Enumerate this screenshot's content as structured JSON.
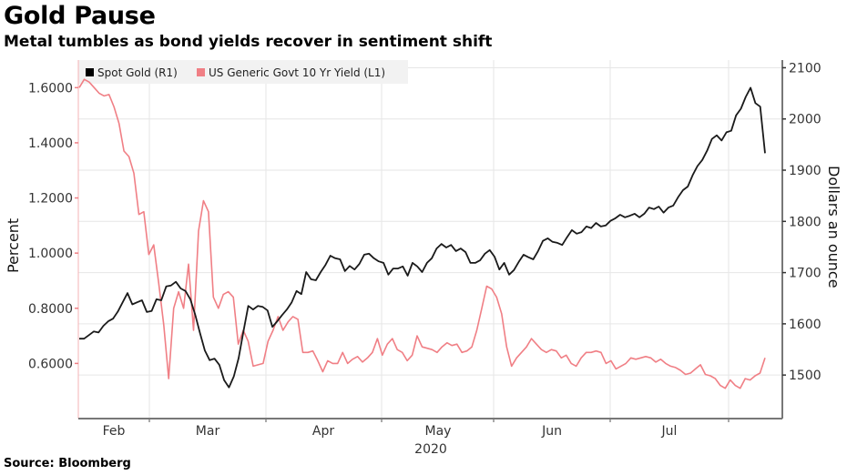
{
  "title": "Gold Pause",
  "subtitle": "Metal tumbles as bond yields recover in sentiment shift",
  "source": "Source: Bloomberg",
  "chart_data": {
    "type": "line",
    "title": "Gold Pause",
    "subtitle": "Metal tumbles as bond yields recover in sentiment shift",
    "xlabel": "2020",
    "x_tick_labels": [
      "Feb",
      "Mar",
      "Apr",
      "May",
      "Jun",
      "Jul"
    ],
    "x_year_label": "2020",
    "x_range": [
      "2020-01-24",
      "2020-08-11"
    ],
    "legend_placement": "top-left",
    "grid": true,
    "left_axis": {
      "label": "Percent",
      "ylim": [
        0.4,
        1.7
      ],
      "ticks": [
        1.6,
        1.4,
        1.2,
        1.0,
        0.8,
        0.6
      ],
      "tick_labels": [
        "1.6000",
        "1.4000",
        "1.2000",
        "1.0000",
        "0.8000",
        "0.6000"
      ],
      "color": "#f07f85"
    },
    "right_axis": {
      "label": "Dollars an ounce",
      "ylim": [
        1415,
        2115
      ],
      "ticks": [
        2100,
        2000,
        1900,
        1800,
        1700,
        1600,
        1500
      ],
      "tick_labels": [
        "2100",
        "2000",
        "1900",
        "1800",
        "1700",
        "1600",
        "1500"
      ],
      "color": "#555555"
    },
    "series": [
      {
        "name": "Spot Gold (R1)",
        "axis": "right",
        "color": "#1a1a1a",
        "values": [
          1571,
          1571,
          1578,
          1585,
          1583,
          1596,
          1605,
          1610,
          1624,
          1642,
          1660,
          1638,
          1642,
          1646,
          1623,
          1625,
          1648,
          1646,
          1673,
          1675,
          1682,
          1669,
          1664,
          1648,
          1618,
          1582,
          1548,
          1529,
          1532,
          1520,
          1490,
          1476,
          1497,
          1533,
          1585,
          1635,
          1628,
          1635,
          1633,
          1626,
          1594,
          1605,
          1617,
          1628,
          1642,
          1664,
          1658,
          1701,
          1687,
          1685,
          1701,
          1715,
          1733,
          1728,
          1726,
          1703,
          1713,
          1706,
          1717,
          1735,
          1737,
          1728,
          1722,
          1719,
          1696,
          1708,
          1708,
          1712,
          1694,
          1719,
          1712,
          1701,
          1719,
          1728,
          1747,
          1756,
          1749,
          1754,
          1742,
          1747,
          1740,
          1719,
          1719,
          1724,
          1737,
          1744,
          1731,
          1706,
          1719,
          1696,
          1705,
          1721,
          1735,
          1730,
          1726,
          1742,
          1762,
          1767,
          1760,
          1758,
          1754,
          1769,
          1783,
          1776,
          1779,
          1790,
          1787,
          1797,
          1790,
          1792,
          1801,
          1806,
          1813,
          1808,
          1811,
          1815,
          1808,
          1815,
          1827,
          1824,
          1829,
          1817,
          1827,
          1831,
          1847,
          1861,
          1868,
          1890,
          1908,
          1920,
          1938,
          1961,
          1968,
          1958,
          1974,
          1977,
          2007,
          2020,
          2043,
          2061,
          2031,
          2024,
          1933
        ]
      },
      {
        "name": "US Generic Govt 10 Yr Yield (L1)",
        "axis": "left",
        "color": "#f07f85",
        "values": [
          1.6,
          1.63,
          1.62,
          1.6,
          1.58,
          1.57,
          1.575,
          1.53,
          1.47,
          1.37,
          1.35,
          1.29,
          1.14,
          1.15,
          0.995,
          1.03,
          0.89,
          0.74,
          0.545,
          0.8,
          0.86,
          0.8,
          0.96,
          0.72,
          1.08,
          1.19,
          1.15,
          0.84,
          0.8,
          0.85,
          0.86,
          0.84,
          0.67,
          0.72,
          0.68,
          0.59,
          0.595,
          0.6,
          0.68,
          0.72,
          0.77,
          0.72,
          0.75,
          0.77,
          0.76,
          0.64,
          0.64,
          0.645,
          0.61,
          0.57,
          0.61,
          0.6,
          0.6,
          0.64,
          0.6,
          0.615,
          0.625,
          0.605,
          0.62,
          0.64,
          0.69,
          0.63,
          0.67,
          0.69,
          0.65,
          0.64,
          0.61,
          0.63,
          0.7,
          0.66,
          0.655,
          0.65,
          0.64,
          0.66,
          0.675,
          0.665,
          0.67,
          0.64,
          0.645,
          0.66,
          0.72,
          0.8,
          0.88,
          0.87,
          0.84,
          0.78,
          0.66,
          0.59,
          0.62,
          0.64,
          0.66,
          0.69,
          0.67,
          0.65,
          0.64,
          0.65,
          0.645,
          0.62,
          0.63,
          0.6,
          0.59,
          0.62,
          0.64,
          0.64,
          0.645,
          0.64,
          0.6,
          0.61,
          0.58,
          0.59,
          0.6,
          0.62,
          0.615,
          0.62,
          0.625,
          0.62,
          0.605,
          0.615,
          0.6,
          0.59,
          0.585,
          0.575,
          0.56,
          0.565,
          0.58,
          0.595,
          0.56,
          0.555,
          0.545,
          0.52,
          0.51,
          0.54,
          0.52,
          0.51,
          0.545,
          0.54,
          0.555,
          0.565,
          0.62
        ]
      }
    ]
  }
}
